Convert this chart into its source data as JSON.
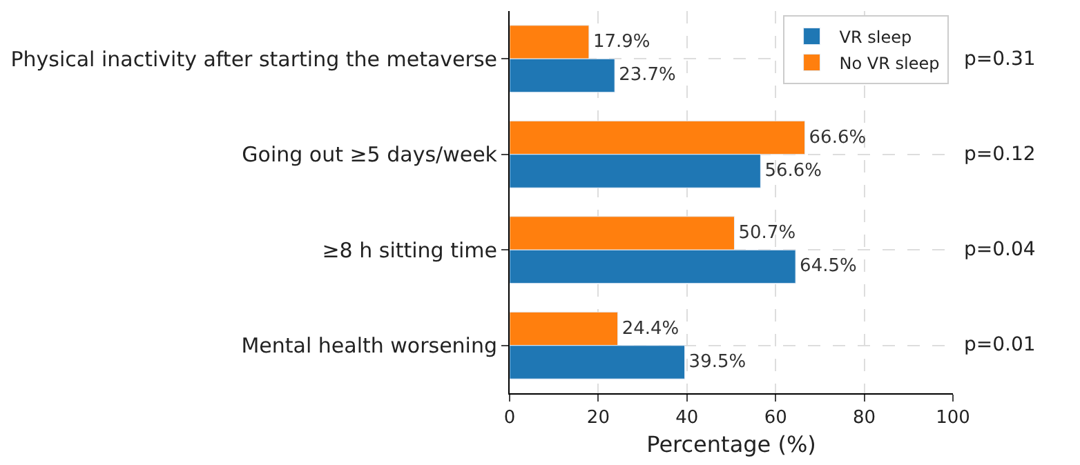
{
  "chart_data": {
    "type": "bar",
    "orientation": "horizontal",
    "xlabel": "Percentage (%)",
    "categories": [
      "Physical inactivity after starting the metaverse",
      "Going out ≥5 days/week",
      "≥8 h sitting time",
      "Mental health worsening"
    ],
    "series": [
      {
        "name": "VR sleep",
        "color": "#1f77b4",
        "values": [
          23.7,
          56.6,
          64.5,
          39.5
        ],
        "value_labels": [
          "23.7%",
          "56.6%",
          "64.5%",
          "39.5%"
        ]
      },
      {
        "name": "No VR sleep",
        "color": "#ff7f0e",
        "values": [
          17.9,
          66.6,
          50.7,
          24.4
        ],
        "value_labels": [
          "17.9%",
          "66.6%",
          "50.7%",
          "24.4%"
        ]
      }
    ],
    "xlim": [
      0,
      100
    ],
    "xticks": [
      0,
      20,
      40,
      60,
      80,
      100
    ],
    "grid": true,
    "legend": "top right",
    "annotations": [
      "p=0.31",
      "p=0.12",
      "p=0.04",
      "p=0.01"
    ]
  }
}
